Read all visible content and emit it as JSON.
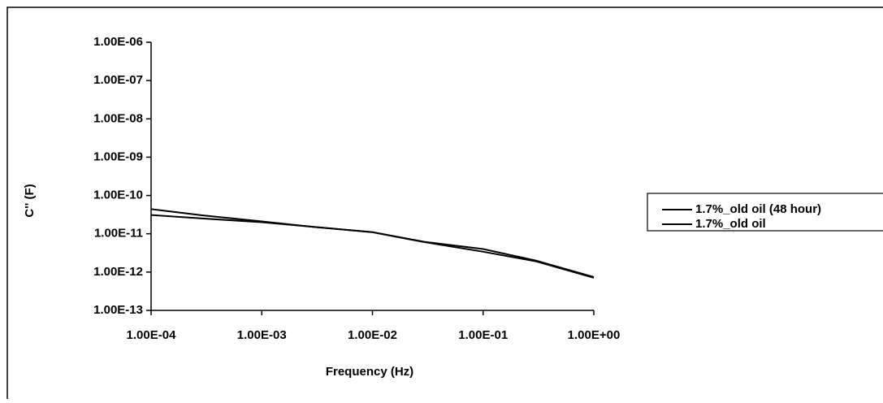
{
  "chart_data": {
    "type": "line",
    "xlabel": "Frequency (Hz)",
    "ylabel": "C'' (F)",
    "xscale": "log",
    "yscale": "log",
    "grid": false,
    "legend": "right",
    "x": [
      0.0001,
      0.0003,
      0.001,
      0.003,
      0.01,
      0.03,
      0.1,
      0.3,
      1
    ],
    "series": [
      {
        "name": "1.7%_old oil (48 hour)",
        "color": "#000000",
        "values": [
          4.4e-11,
          3e-11,
          2.1e-11,
          1.5e-11,
          1.1e-11,
          6.1e-12,
          4e-12,
          2e-12,
          7.4e-13
        ]
      },
      {
        "name": "1.7%_old oil",
        "color": "#000000",
        "values": [
          3.1e-11,
          2.5e-11,
          2e-11,
          1.5e-11,
          1.1e-11,
          6e-12,
          3.4e-12,
          1.9e-12,
          7.1e-13
        ]
      }
    ],
    "xlim": [
      0.0001,
      1
    ],
    "xticks": [
      {
        "value": 0.0001,
        "label": "1.00E-04"
      },
      {
        "value": 0.001,
        "label": "1.00E-03"
      },
      {
        "value": 0.01,
        "label": "1.00E-02"
      },
      {
        "value": 0.1,
        "label": "1.00E-01"
      },
      {
        "value": 1,
        "label": "1.00E+00"
      }
    ],
    "ylim": [
      1e-13,
      1e-06
    ],
    "yticks": [
      {
        "value": 1e-13,
        "label": "1.00E-13"
      },
      {
        "value": 1e-12,
        "label": "1.00E-12"
      },
      {
        "value": 1e-11,
        "label": "1.00E-11"
      },
      {
        "value": 1e-10,
        "label": "1.00E-10"
      },
      {
        "value": 1e-09,
        "label": "1.00E-09"
      },
      {
        "value": 1e-08,
        "label": "1.00E-08"
      },
      {
        "value": 1e-07,
        "label": "1.00E-07"
      },
      {
        "value": 1e-06,
        "label": "1.00E-06"
      }
    ]
  }
}
